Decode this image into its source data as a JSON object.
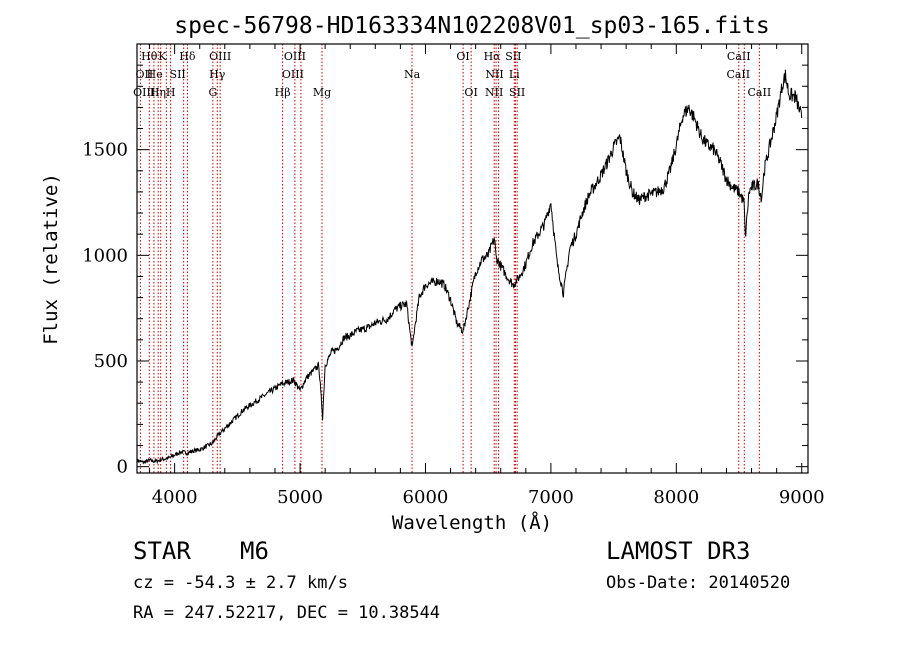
{
  "chart_data": {
    "type": "line",
    "title": "spec-56798-HD163334N102208V01_sp03-165.fits",
    "xlabel": "Wavelength (Å)",
    "ylabel": "Flux (relative)",
    "xlim": [
      3700,
      9050
    ],
    "ylim": [
      -30,
      2000
    ],
    "xticks": [
      4000,
      5000,
      6000,
      7000,
      8000,
      9000
    ],
    "yticks": [
      0,
      500,
      1000,
      1500
    ],
    "grid": false,
    "series": [
      {
        "name": "flux",
        "x": [
          3700,
          3750,
          3800,
          3850,
          3900,
          3950,
          4000,
          4050,
          4100,
          4150,
          4200,
          4250,
          4300,
          4350,
          4400,
          4450,
          4500,
          4550,
          4600,
          4650,
          4700,
          4750,
          4800,
          4850,
          4900,
          4950,
          5000,
          5050,
          5100,
          5150,
          5180,
          5200,
          5250,
          5300,
          5350,
          5400,
          5450,
          5500,
          5550,
          5600,
          5650,
          5700,
          5750,
          5800,
          5850,
          5880,
          5895,
          5910,
          5950,
          6000,
          6050,
          6100,
          6150,
          6200,
          6250,
          6300,
          6350,
          6400,
          6450,
          6500,
          6550,
          6563,
          6600,
          6650,
          6700,
          6750,
          6800,
          6850,
          6900,
          6950,
          7000,
          7050,
          7100,
          7150,
          7200,
          7250,
          7300,
          7350,
          7400,
          7450,
          7500,
          7550,
          7600,
          7650,
          7700,
          7750,
          7800,
          7850,
          7900,
          7950,
          8000,
          8050,
          8100,
          8150,
          8200,
          8250,
          8300,
          8350,
          8400,
          8450,
          8500,
          8540,
          8550,
          8580,
          8600,
          8650,
          8680,
          8700,
          8750,
          8800,
          8850,
          8870,
          8900,
          8950,
          9000
        ],
        "y": [
          30,
          20,
          30,
          25,
          35,
          40,
          55,
          70,
          65,
          75,
          80,
          95,
          110,
          150,
          180,
          210,
          240,
          270,
          290,
          310,
          330,
          350,
          370,
          390,
          400,
          410,
          360,
          420,
          450,
          480,
          230,
          480,
          540,
          560,
          610,
          620,
          640,
          650,
          660,
          680,
          690,
          700,
          740,
          760,
          770,
          620,
          560,
          640,
          800,
          860,
          870,
          880,
          860,
          790,
          680,
          640,
          780,
          920,
          980,
          1000,
          1080,
          990,
          950,
          900,
          860,
          900,
          960,
          1050,
          1100,
          1150,
          1250,
          960,
          820,
          1030,
          1100,
          1200,
          1280,
          1330,
          1380,
          1440,
          1510,
          1560,
          1400,
          1300,
          1260,
          1280,
          1290,
          1300,
          1320,
          1400,
          1520,
          1660,
          1700,
          1640,
          1560,
          1520,
          1500,
          1440,
          1360,
          1320,
          1300,
          1250,
          1080,
          1300,
          1320,
          1340,
          1270,
          1400,
          1530,
          1660,
          1820,
          1850,
          1760,
          1750,
          1650
        ]
      }
    ],
    "lines": [
      {
        "name": "Hθ",
        "x": 3798,
        "row": 0,
        "dx": 0
      },
      {
        "name": "K",
        "x": 3934,
        "row": 0,
        "dx": -4
      },
      {
        "name": "Hδ",
        "x": 4102,
        "row": 0,
        "dx": 0
      },
      {
        "name": "OIII",
        "x": 4363,
        "row": 0,
        "dx": 0
      },
      {
        "name": "OIII",
        "x": 4959,
        "row": 0,
        "dx": 0
      },
      {
        "name": "OI",
        "x": 6300,
        "row": 0,
        "dx": 0
      },
      {
        "name": "Hα",
        "x": 6563,
        "row": 0,
        "dx": -4
      },
      {
        "name": "SII",
        "x": 6717,
        "row": 0,
        "dx": -2
      },
      {
        "name": "CaII",
        "x": 8498,
        "row": 0,
        "dx": 0
      },
      {
        "name": "OII",
        "x": 3727,
        "row": 1,
        "dx": 4
      },
      {
        "name": "He",
        "x": 3889,
        "row": 1,
        "dx": -6
      },
      {
        "name": "SII",
        "x": 4072,
        "row": 1,
        "dx": -6
      },
      {
        "name": "Hγ",
        "x": 4340,
        "row": 1,
        "dx": 0
      },
      {
        "name": "OIII",
        "x": 5007,
        "row": 1,
        "dx": -8
      },
      {
        "name": "Na",
        "x": 5893,
        "row": 1,
        "dx": 0
      },
      {
        "name": "NII",
        "x": 6583,
        "row": 1,
        "dx": -4
      },
      {
        "name": "Li",
        "x": 6708,
        "row": 1,
        "dx": 0
      },
      {
        "name": "CaII",
        "x": 8542,
        "row": 1,
        "dx": -6
      },
      {
        "name": "OIII",
        "x": 3869,
        "row": 2,
        "dx": -14
      },
      {
        "name": "Hη",
        "x": 3835,
        "row": 2,
        "dx": 4
      },
      {
        "name": "H",
        "x": 3968,
        "row": 2,
        "dx": 0
      },
      {
        "name": "G",
        "x": 4305,
        "row": 2,
        "dx": 0
      },
      {
        "name": "Hβ",
        "x": 4861,
        "row": 2,
        "dx": 0
      },
      {
        "name": "Mg",
        "x": 5175,
        "row": 2,
        "dx": 0
      },
      {
        "name": "OI",
        "x": 6364,
        "row": 2,
        "dx": 0
      },
      {
        "name": "NII",
        "x": 6548,
        "row": 2,
        "dx": 0
      },
      {
        "name": "SII",
        "x": 6731,
        "row": 2,
        "dx": 0
      },
      {
        "name": "CaII",
        "x": 8662,
        "row": 2,
        "dx": 0
      }
    ],
    "line_color": "#c00000"
  },
  "info": {
    "class": "STAR",
    "subclass": "M6",
    "survey": "LAMOST DR3",
    "cz": "cz = -54.3 ± 2.7 km/s",
    "obs_date": "Obs-Date: 20140520",
    "radec": "RA = 247.52217, DEC =  10.38544"
  }
}
